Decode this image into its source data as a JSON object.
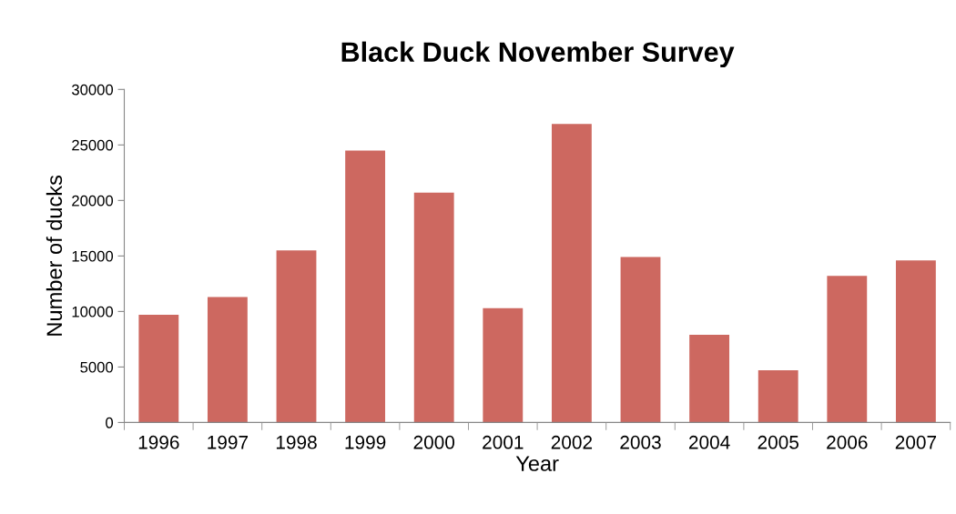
{
  "chart_data": {
    "type": "bar",
    "title": "Black Duck November Survey",
    "xlabel": "Year",
    "ylabel": "Number of ducks",
    "categories": [
      "1996",
      "1997",
      "1998",
      "1999",
      "2000",
      "2001",
      "2002",
      "2003",
      "2004",
      "2005",
      "2006",
      "2007"
    ],
    "values": [
      9700,
      11300,
      15500,
      24500,
      20700,
      10300,
      26900,
      14900,
      7900,
      4700,
      13200,
      14600
    ],
    "color": "#cd6860",
    "ylim": [
      0,
      30000
    ],
    "yticks": [
      0,
      5000,
      10000,
      15000,
      20000,
      25000,
      30000
    ],
    "grid": false,
    "legend": false
  }
}
